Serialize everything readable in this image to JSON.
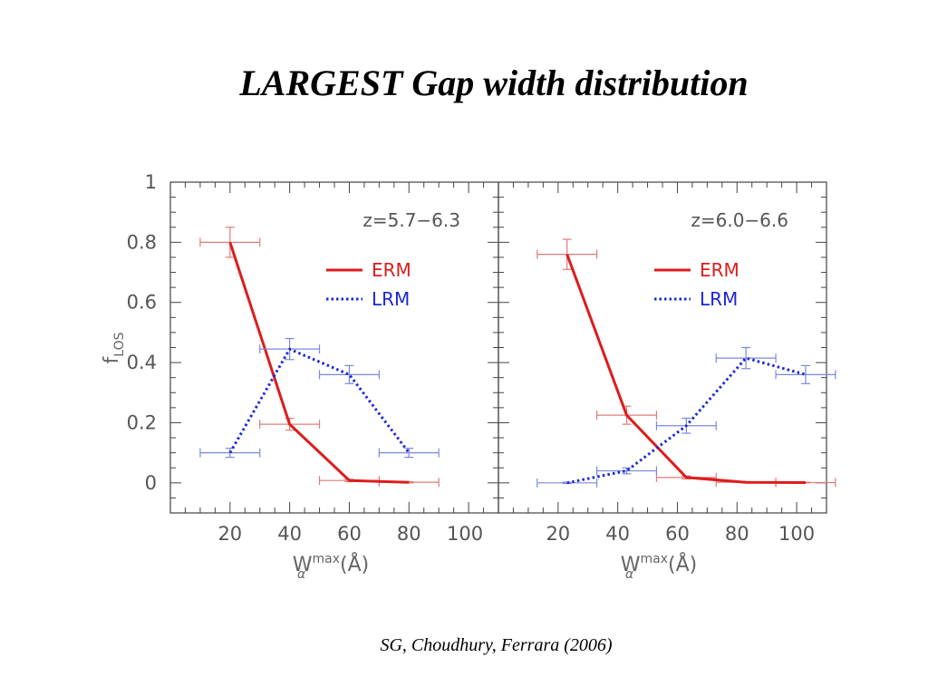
{
  "slide": {
    "title": "LARGEST Gap width distribution",
    "citation": "SG, Choudhury, Ferrara (2006)"
  },
  "colors": {
    "erm": "#dd1c1c",
    "lrm": "#1c28d4",
    "erm_error": "#e07a7a",
    "lrm_error": "#7a88e0",
    "frame": "#444444",
    "text": "#555555"
  },
  "chart_data": [
    {
      "type": "line",
      "panel": "left",
      "annotation": "z=5.7−6.3",
      "xlabel": "W_α^max(Å)",
      "ylabel": "f_LOS",
      "xlim": [
        0,
        110
      ],
      "ylim": [
        -0.1,
        1
      ],
      "x_ticks": [
        20,
        40,
        60,
        80,
        100
      ],
      "x_tick_labels": [
        "20",
        "40",
        "60",
        "80",
        "100"
      ],
      "y_ticks": [
        0,
        0.2,
        0.4,
        0.6,
        0.8,
        1
      ],
      "y_tick_labels": [
        "0",
        "0.2",
        "0.4",
        "0.6",
        "0.8",
        "1"
      ],
      "legend": [
        {
          "name": "ERM",
          "style": "solid"
        },
        {
          "name": "LRM",
          "style": "dotted"
        }
      ],
      "series": [
        {
          "name": "ERM",
          "style": "solid",
          "x": [
            20,
            40,
            60,
            80
          ],
          "y": [
            0.8,
            0.195,
            0.008,
            0.002
          ],
          "xerr": [
            10,
            10,
            10,
            10
          ],
          "yerr": [
            0.05,
            0.02,
            0.004,
            0.002
          ]
        },
        {
          "name": "LRM",
          "style": "dotted",
          "x": [
            20,
            40,
            60,
            80
          ],
          "y": [
            0.1,
            0.445,
            0.36,
            0.1
          ],
          "xerr": [
            10,
            10,
            10,
            10
          ],
          "yerr": [
            0.015,
            0.035,
            0.03,
            0.015
          ]
        }
      ]
    },
    {
      "type": "line",
      "panel": "right",
      "annotation": "z=6.0−6.6",
      "xlabel": "W_α^max(Å)",
      "xlim": [
        0,
        110
      ],
      "ylim": [
        -0.1,
        1
      ],
      "x_ticks": [
        20,
        40,
        60,
        80,
        100
      ],
      "x_tick_labels": [
        "20",
        "40",
        "60",
        "80",
        "100"
      ],
      "legend": [
        {
          "name": "ERM",
          "style": "solid"
        },
        {
          "name": "LRM",
          "style": "dotted"
        }
      ],
      "series": [
        {
          "name": "ERM",
          "style": "solid",
          "x": [
            23,
            43,
            63,
            83,
            103
          ],
          "y": [
            0.76,
            0.225,
            0.018,
            0.002,
            0.001
          ],
          "xerr": [
            10,
            10,
            10,
            10,
            10
          ],
          "yerr": [
            0.05,
            0.03,
            0.005,
            0.002,
            0.001
          ]
        },
        {
          "name": "LRM",
          "style": "dotted",
          "x": [
            23,
            43,
            63,
            83,
            103
          ],
          "y": [
            0.0,
            0.04,
            0.19,
            0.415,
            0.36
          ],
          "xerr": [
            10,
            10,
            10,
            10,
            10
          ],
          "yerr": [
            0.002,
            0.01,
            0.025,
            0.035,
            0.03
          ]
        }
      ]
    }
  ]
}
